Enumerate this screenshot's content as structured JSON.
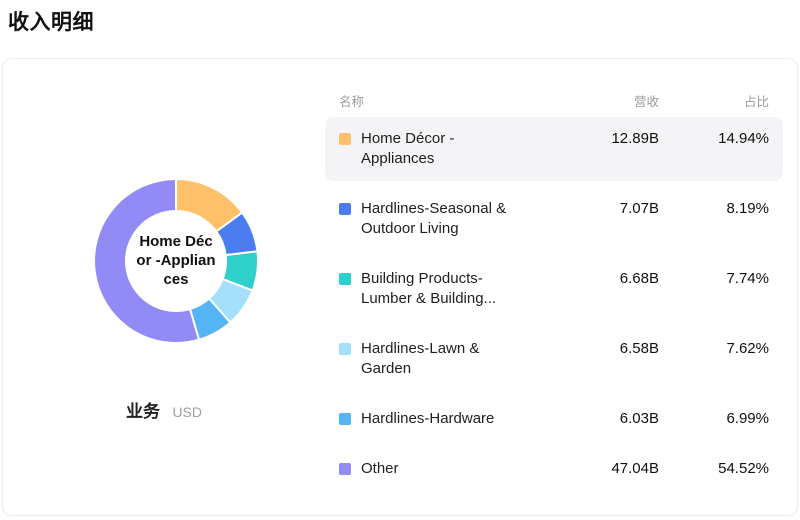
{
  "page_title": "收入明细",
  "card": {
    "center_label_lines": [
      "Home Déc",
      "or -Applian",
      "ces"
    ],
    "legend_series": "业务",
    "legend_unit": "USD"
  },
  "table": {
    "headers": {
      "name": "名称",
      "revenue": "营收",
      "share": "占比"
    },
    "rows": [
      {
        "name": "Home Décor - Appliances",
        "revenue": "12.89B",
        "share": "14.94%",
        "color": "#FFC069",
        "highlight": true
      },
      {
        "name": "Hardlines-Seasonal & Outdoor Living",
        "revenue": "7.07B",
        "share": "8.19%",
        "color": "#4C7DF0",
        "highlight": false
      },
      {
        "name": "Building Products-Lumber & Building...",
        "revenue": "6.68B",
        "share": "7.74%",
        "color": "#2FD0CB",
        "highlight": false
      },
      {
        "name": "Hardlines-Lawn & Garden",
        "revenue": "6.58B",
        "share": "7.62%",
        "color": "#A4DFFB",
        "highlight": false
      },
      {
        "name": "Hardlines-Hardware",
        "revenue": "6.03B",
        "share": "6.99%",
        "color": "#55B5F4",
        "highlight": false
      },
      {
        "name": "Other",
        "revenue": "47.04B",
        "share": "54.52%",
        "color": "#928BF6",
        "highlight": false
      }
    ]
  },
  "chart_data": {
    "type": "pie",
    "title": "收入明细",
    "subtype": "donut",
    "unit": "USD",
    "series_name": "业务",
    "labels": [
      "Home Décor - Appliances",
      "Hardlines-Seasonal & Outdoor Living",
      "Building Products-Lumber & Building...",
      "Hardlines-Lawn & Garden",
      "Hardlines-Hardware",
      "Other"
    ],
    "values_billions": [
      12.89,
      7.07,
      6.68,
      6.58,
      6.03,
      47.04
    ],
    "shares_percent": [
      14.94,
      8.19,
      7.74,
      7.62,
      6.99,
      54.52
    ],
    "colors": [
      "#FFC069",
      "#4C7DF0",
      "#2FD0CB",
      "#A4DFFB",
      "#55B5F4",
      "#928BF6"
    ],
    "start_angle": "top",
    "direction": "clockwise",
    "inner_radius_ratio": 0.61,
    "center_label": "Home Décor -Appliances",
    "selected_label": "Home Décor - Appliances"
  }
}
